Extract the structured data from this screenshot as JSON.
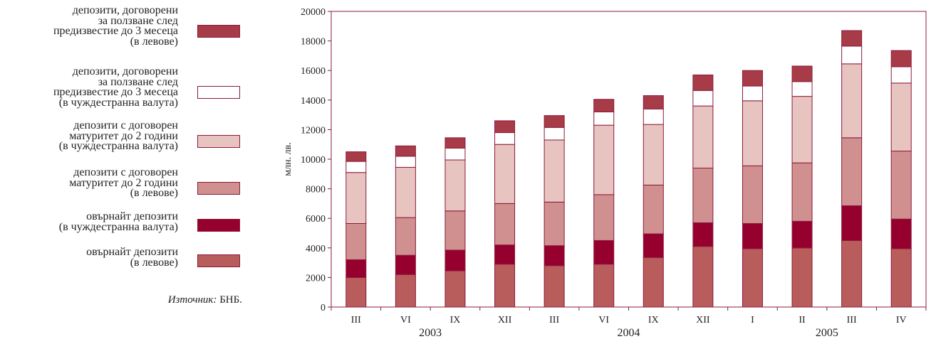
{
  "chart_data": {
    "type": "bar",
    "stacked": true,
    "ylabel": "млн. лв.",
    "ylim": [
      0,
      20000
    ],
    "yticks": [
      0,
      2000,
      4000,
      6000,
      8000,
      10000,
      12000,
      14000,
      16000,
      18000,
      20000
    ],
    "categories": [
      "III",
      "VI",
      "IX",
      "XII",
      "III",
      "VI",
      "IX",
      "XII",
      "I",
      "II",
      "III",
      "IV"
    ],
    "year_groups": [
      {
        "label": "2003",
        "from": 0,
        "to": 3
      },
      {
        "label": "2004",
        "from": 4,
        "to": 7
      },
      {
        "label": "2005",
        "from": 8,
        "to": 11
      }
    ],
    "series": [
      {
        "name": "овърнайт депозити\n(в левове)",
        "color": "#b85c5c",
        "values": [
          2000,
          2200,
          2450,
          2900,
          2800,
          2900,
          3350,
          4100,
          3950,
          4000,
          4500,
          3950
        ]
      },
      {
        "name": "овърнайт депозити\n(в чуждестранна валута)",
        "color": "#95002e",
        "values": [
          1200,
          1300,
          1400,
          1300,
          1350,
          1600,
          1600,
          1600,
          1700,
          1800,
          2350,
          2000
        ]
      },
      {
        "name": "депозити с договорен\nматуритет до 2 години\n(в левове)",
        "color": "#d09090",
        "values": [
          2450,
          2550,
          2650,
          2800,
          2950,
          3100,
          3300,
          3700,
          3900,
          3950,
          4600,
          4600
        ]
      },
      {
        "name": "депозити с договорен\nматуритет до 2 години\n(в чуждестранна валута)",
        "color": "#e8c4c0",
        "values": [
          3450,
          3400,
          3450,
          4000,
          4200,
          4700,
          4100,
          4200,
          4400,
          4500,
          5000,
          4600
        ]
      },
      {
        "name": "депозити, договорени\nза ползване след\nпредизвестие до 3 месеца\n(в чуждестранна валута)",
        "color": "#ffffff",
        "values": [
          750,
          750,
          800,
          800,
          850,
          900,
          1050,
          1050,
          1000,
          1000,
          1200,
          1100
        ]
      },
      {
        "name": "депозити, договорени\nза ползване след\nпредизвестие до 3 месеца\n(в левове)",
        "color": "#a83b48",
        "values": [
          650,
          700,
          700,
          800,
          800,
          850,
          900,
          1050,
          1050,
          1050,
          1050,
          1100
        ]
      }
    ]
  },
  "source": {
    "label": "Източник:",
    "value": "БНБ."
  }
}
